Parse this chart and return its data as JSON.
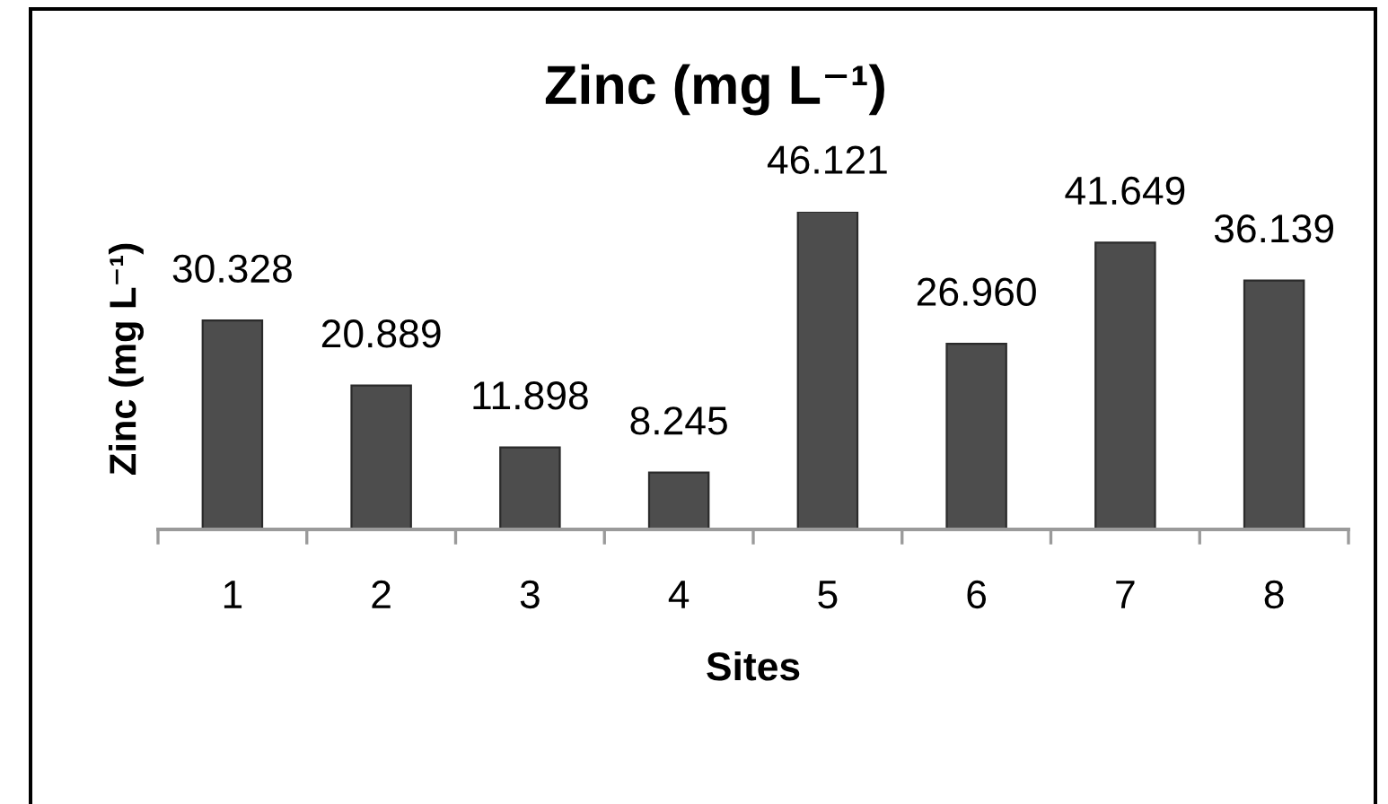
{
  "chart_data": {
    "type": "bar",
    "title": "Zinc (mg L⁻¹)",
    "xlabel": "Sites",
    "ylabel": "Zinc (mg L⁻¹)",
    "categories": [
      "1",
      "2",
      "3",
      "4",
      "5",
      "6",
      "7",
      "8"
    ],
    "values": [
      30.328,
      20.889,
      11.898,
      8.245,
      46.121,
      26.96,
      41.649,
      36.139
    ],
    "value_labels": [
      "30.328",
      "20.889",
      "11.898",
      "8.245",
      "46.121",
      "26.960",
      "41.649",
      "36.139"
    ],
    "color": "#4d4d4d",
    "tick_labels": "x"
  }
}
